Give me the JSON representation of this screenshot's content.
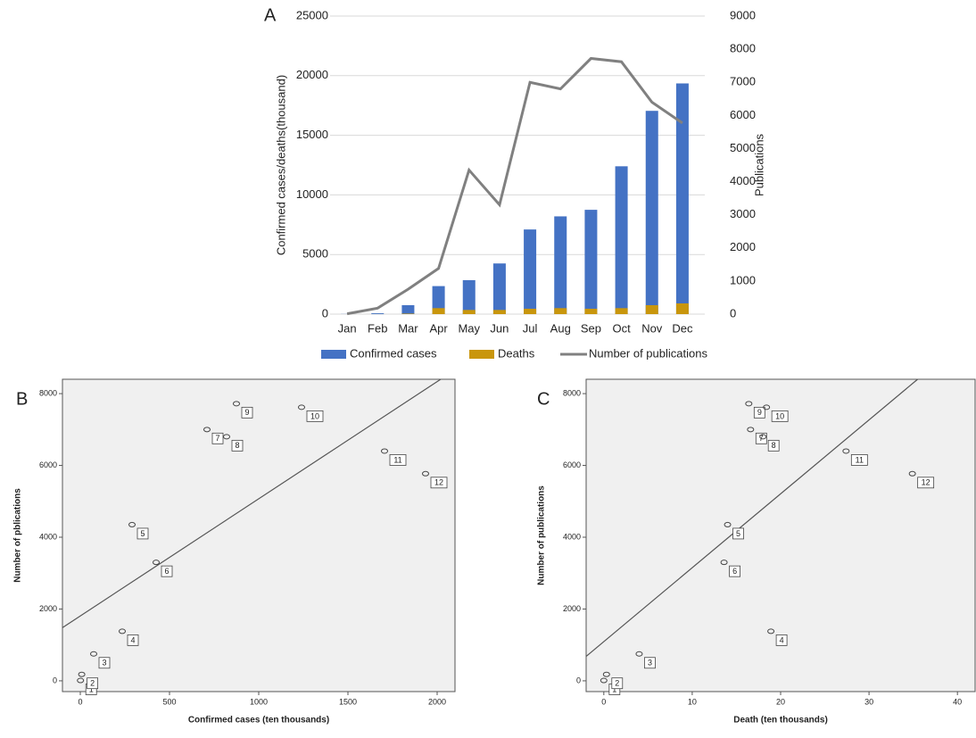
{
  "chart_data": [
    {
      "type": "bar",
      "title": "A",
      "categories": [
        "Jan",
        "Feb",
        "Mar",
        "Apr",
        "May",
        "Jun",
        "Jul",
        "Aug",
        "Sep",
        "Oct",
        "Nov",
        "Dec"
      ],
      "series": [
        {
          "name": "Confirmed cases",
          "color": "#4472c4",
          "values": [
            10,
            70,
            750,
            2350,
            2850,
            4250,
            7100,
            8200,
            8750,
            12400,
            17050,
            19350
          ]
        },
        {
          "name": "Deaths",
          "color": "#c9960c",
          "values": [
            0,
            2,
            40,
            500,
            350,
            350,
            450,
            500,
            450,
            500,
            750,
            900
          ]
        },
        {
          "name": "Number of publications",
          "color": "#808080",
          "type": "line",
          "axis": "y2",
          "values": [
            10,
            180,
            750,
            1380,
            4350,
            3300,
            7000,
            6800,
            7720,
            7620,
            6400,
            5770
          ]
        }
      ],
      "ylabel": "Confirmed cases/deaths(thousand)",
      "y2label": "Publications",
      "ylim": [
        0,
        25000
      ],
      "yticks": [
        0,
        5000,
        10000,
        15000,
        20000,
        25000
      ],
      "y2lim": [
        0,
        9000
      ],
      "y2ticks": [
        0,
        1000,
        2000,
        3000,
        4000,
        5000,
        6000,
        7000,
        8000,
        9000
      ],
      "grid": true,
      "legend": "bottom"
    },
    {
      "type": "scatter",
      "title": "B",
      "xlabel": "Confirmed cases (ten thousands)",
      "ylabel": "Number of pblications",
      "x": [
        1,
        8,
        75,
        235,
        290,
        425,
        710,
        820,
        875,
        1240,
        1705,
        1935
      ],
      "y": [
        10,
        180,
        750,
        1380,
        4350,
        3300,
        7000,
        6800,
        7720,
        7620,
        6400,
        5770
      ],
      "point_labels": [
        "1",
        "2",
        "3",
        "4",
        "5",
        "6",
        "7",
        "8",
        "9",
        "10",
        "11",
        "12"
      ],
      "trend_line": {
        "x": [
          -100,
          2020
        ],
        "y": [
          1480,
          8400
        ]
      },
      "xlim": [
        -100,
        2100
      ],
      "ylim": [
        -300,
        8400
      ],
      "xticks": [
        0,
        500,
        1000,
        1500,
        2000
      ],
      "yticks": [
        0,
        2000,
        4000,
        6000,
        8000
      ],
      "background": "#f0f0f0"
    },
    {
      "type": "scatter",
      "title": "C",
      "xlabel": "Death (ten thousands)",
      "ylabel": "Number of publications",
      "x": [
        0,
        0.3,
        4,
        18.9,
        14,
        13.6,
        16.6,
        18,
        16.4,
        18.4,
        27.4,
        34.9
      ],
      "y": [
        10,
        180,
        750,
        1380,
        4350,
        3300,
        7000,
        6800,
        7720,
        7620,
        6400,
        5770
      ],
      "point_labels": [
        "1",
        "2",
        "3",
        "4",
        "5",
        "6",
        "7",
        "8",
        "9",
        "10",
        "11",
        "12"
      ],
      "trend_line": {
        "x": [
          -2,
          35.5
        ],
        "y": [
          680,
          8400
        ]
      },
      "xlim": [
        -2,
        42
      ],
      "ylim": [
        -300,
        8400
      ],
      "xticks": [
        0,
        10,
        20,
        30,
        40
      ],
      "yticks": [
        0,
        2000,
        4000,
        6000,
        8000
      ],
      "background": "#f0f0f0"
    }
  ]
}
